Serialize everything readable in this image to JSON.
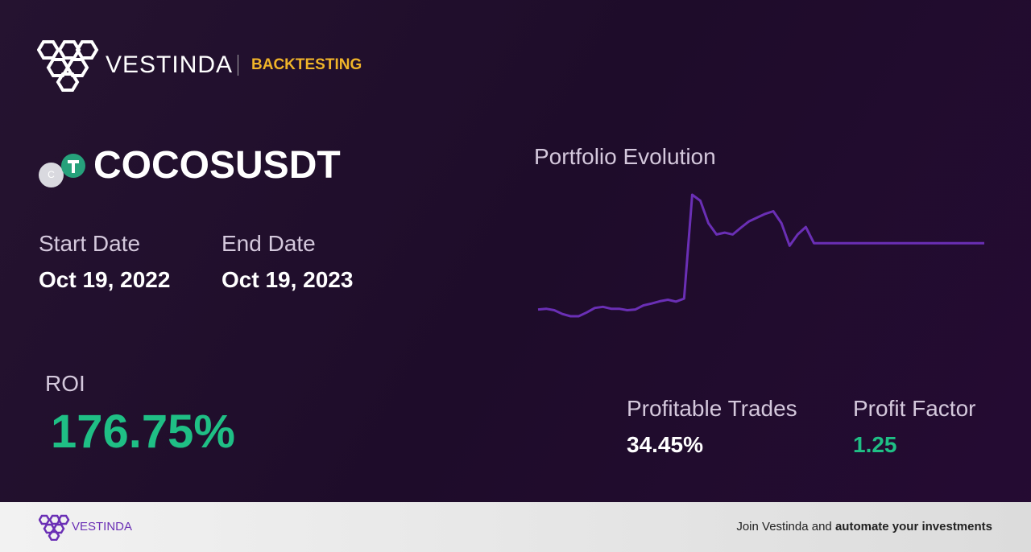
{
  "header": {
    "brand": "VESTINDA",
    "section": "BACKTESTING"
  },
  "asset": {
    "icon_letter": "C",
    "symbol": "COCOSUSDT"
  },
  "dates": {
    "start_label": "Start Date",
    "start": "Oct 19, 2022",
    "end_label": "End Date",
    "end": "Oct 19, 2023"
  },
  "roi": {
    "label": "ROI",
    "value": "176.75%"
  },
  "stats": {
    "profitable_label": "Profitable Trades",
    "profitable": "34.45%",
    "factor_label": "Profit Factor",
    "factor": "1.25"
  },
  "footer": {
    "brand": "VESTINDA",
    "cta": "Join Vestinda and",
    "cta_bold": "automate your investments"
  },
  "chart_data": {
    "type": "line",
    "title": "Portfolio Evolution",
    "color": "#6a2fb5",
    "values": [
      100,
      102,
      98,
      88,
      82,
      82,
      92,
      104,
      107,
      102,
      102,
      98,
      100,
      111,
      116,
      122,
      126,
      121,
      129,
      406,
      390,
      330,
      300,
      305,
      300,
      318,
      335,
      345,
      355,
      362,
      330,
      270,
      300,
      320,
      276.75,
      276.75,
      276.75,
      276.75,
      276.75,
      276.75,
      276.75,
      276.75,
      276.75,
      276.75,
      276.75,
      276.75,
      276.75,
      276.75,
      276.75,
      276.75,
      276.75,
      276.75,
      276.75,
      276.75,
      276.75,
      276.75
    ]
  }
}
